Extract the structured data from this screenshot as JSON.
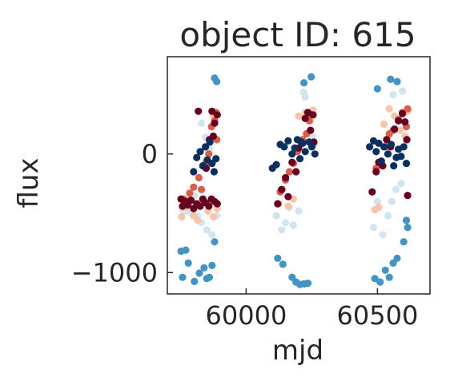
{
  "chart_data": {
    "type": "scatter",
    "title": "object ID: 615",
    "xlabel": "mjd",
    "ylabel": "flux",
    "xlim": [
      59700,
      60700
    ],
    "ylim": [
      -1180,
      820
    ],
    "xticks": [
      {
        "value": 60000,
        "label": "60000"
      },
      {
        "value": 60500,
        "label": "60500"
      }
    ],
    "yticks": [
      {
        "value": 0,
        "label": "0"
      },
      {
        "value": -1000,
        "label": "−1000"
      }
    ],
    "grid": false,
    "legend": "none",
    "band_colors": [
      "#2166ac",
      "#4393c3",
      "#d1e5f0",
      "#f7c5aa",
      "#d6604d",
      "#67001f",
      "#0b2f5e"
    ],
    "seasons": [
      {
        "x_start": 59750,
        "x_end": 59895
      },
      {
        "x_start": 60110,
        "x_end": 60260
      },
      {
        "x_start": 60470,
        "x_end": 60620
      }
    ],
    "series": [
      {
        "color": "#4393c3",
        "points": [
          [
            59752,
            -820
          ],
          [
            59758,
            -1040
          ],
          [
            59770,
            -810
          ],
          [
            59780,
            -920
          ],
          [
            59803,
            -1075
          ],
          [
            59822,
            -1005
          ],
          [
            59840,
            -960
          ],
          [
            59850,
            -1050
          ],
          [
            59860,
            -1040
          ],
          [
            59870,
            -940
          ],
          [
            59880,
            -740
          ],
          [
            59888,
            610
          ],
          [
            59880,
            640
          ],
          [
            60120,
            -880
          ],
          [
            60140,
            -930
          ],
          [
            60175,
            -1040
          ],
          [
            60190,
            -1080
          ],
          [
            60205,
            -1100
          ],
          [
            60220,
            -1095
          ],
          [
            60235,
            -1090
          ],
          [
            60220,
            600
          ],
          [
            60248,
            650
          ],
          [
            60490,
            -1050
          ],
          [
            60510,
            -1080
          ],
          [
            60530,
            -980
          ],
          [
            60545,
            -1040
          ],
          [
            60560,
            -920
          ],
          [
            60575,
            -880
          ],
          [
            60600,
            -740
          ],
          [
            60610,
            -560
          ],
          [
            60615,
            -620
          ],
          [
            60500,
            550
          ],
          [
            60550,
            630
          ],
          [
            60575,
            610
          ]
        ]
      },
      {
        "color": "#d1e5f0",
        "points": [
          [
            59758,
            -470
          ],
          [
            59770,
            -480
          ],
          [
            59790,
            -500
          ],
          [
            59805,
            -350
          ],
          [
            59815,
            -520
          ],
          [
            59830,
            -580
          ],
          [
            59850,
            -640
          ],
          [
            59870,
            -680
          ],
          [
            59888,
            -520
          ],
          [
            59830,
            260
          ],
          [
            59845,
            140
          ],
          [
            59860,
            40
          ],
          [
            60115,
            -520
          ],
          [
            60135,
            -640
          ],
          [
            60150,
            -580
          ],
          [
            60165,
            -450
          ],
          [
            60180,
            -600
          ],
          [
            60200,
            -480
          ],
          [
            60218,
            520
          ],
          [
            60225,
            480
          ],
          [
            60240,
            300
          ],
          [
            60250,
            150
          ],
          [
            60260,
            80
          ],
          [
            60485,
            -620
          ],
          [
            60500,
            -400
          ],
          [
            60520,
            -680
          ],
          [
            60540,
            -520
          ],
          [
            60555,
            -400
          ],
          [
            60570,
            -300
          ],
          [
            60590,
            -250
          ],
          [
            60560,
            500
          ],
          [
            60595,
            530
          ],
          [
            60610,
            100
          ]
        ]
      },
      {
        "color": "#f7c5aa",
        "points": [
          [
            59755,
            -530
          ],
          [
            59770,
            -450
          ],
          [
            59785,
            -380
          ],
          [
            59800,
            -520
          ],
          [
            59815,
            -560
          ],
          [
            59835,
            -400
          ],
          [
            59855,
            -480
          ],
          [
            59875,
            -530
          ],
          [
            59890,
            -460
          ],
          [
            59875,
            320
          ],
          [
            60125,
            -420
          ],
          [
            60140,
            -300
          ],
          [
            60160,
            -440
          ],
          [
            60180,
            -380
          ],
          [
            60200,
            320
          ],
          [
            60225,
            350
          ],
          [
            60245,
            280
          ],
          [
            60255,
            370
          ],
          [
            60490,
            -470
          ],
          [
            60505,
            -450
          ],
          [
            60525,
            250
          ],
          [
            60545,
            380
          ],
          [
            60565,
            320
          ],
          [
            60585,
            200
          ],
          [
            60605,
            150
          ],
          [
            60615,
            360
          ]
        ]
      },
      {
        "color": "#d6604d",
        "points": [
          [
            59762,
            -380
          ],
          [
            59785,
            -330
          ],
          [
            59800,
            -280
          ],
          [
            59820,
            -200
          ],
          [
            59830,
            -300
          ],
          [
            59845,
            -80
          ],
          [
            59858,
            0
          ],
          [
            59868,
            230
          ],
          [
            59880,
            280
          ],
          [
            59888,
            120
          ],
          [
            59885,
            350
          ],
          [
            60130,
            -320
          ],
          [
            60150,
            -220
          ],
          [
            60165,
            -150
          ],
          [
            60180,
            -80
          ],
          [
            60195,
            20
          ],
          [
            60215,
            120
          ],
          [
            60230,
            170
          ],
          [
            60240,
            280
          ],
          [
            60250,
            330
          ],
          [
            60495,
            -120
          ],
          [
            60515,
            -60
          ],
          [
            60530,
            60
          ],
          [
            60545,
            170
          ],
          [
            60560,
            200
          ],
          [
            60580,
            290
          ],
          [
            60595,
            350
          ],
          [
            60610,
            230
          ],
          [
            60615,
            380
          ]
        ]
      },
      {
        "color": "#67001f",
        "points": [
          [
            59752,
            -380
          ],
          [
            59758,
            -440
          ],
          [
            59768,
            -400
          ],
          [
            59778,
            -430
          ],
          [
            59790,
            -390
          ],
          [
            59800,
            -460
          ],
          [
            59812,
            -420
          ],
          [
            59825,
            -440
          ],
          [
            59835,
            -380
          ],
          [
            59845,
            -410
          ],
          [
            59858,
            -440
          ],
          [
            59868,
            -380
          ],
          [
            59880,
            -400
          ],
          [
            59890,
            -420
          ],
          [
            59818,
            360
          ],
          [
            59848,
            -120
          ],
          [
            59860,
            120
          ],
          [
            59870,
            360
          ],
          [
            59880,
            260
          ],
          [
            59890,
            330
          ],
          [
            59875,
            150
          ],
          [
            60120,
            -420
          ],
          [
            60135,
            -300
          ],
          [
            60150,
            -200
          ],
          [
            60160,
            -360
          ],
          [
            60175,
            -70
          ],
          [
            60190,
            -150
          ],
          [
            60200,
            50
          ],
          [
            60210,
            100
          ],
          [
            60225,
            300
          ],
          [
            60235,
            350
          ],
          [
            60245,
            200
          ],
          [
            60255,
            330
          ],
          [
            60258,
            100
          ],
          [
            60480,
            -320
          ],
          [
            60495,
            -150
          ],
          [
            60505,
            -70
          ],
          [
            60520,
            -100
          ],
          [
            60535,
            120
          ],
          [
            60550,
            60
          ],
          [
            60565,
            210
          ],
          [
            60580,
            280
          ],
          [
            60595,
            340
          ],
          [
            60605,
            270
          ],
          [
            60615,
            -350
          ],
          [
            60612,
            120
          ]
        ]
      },
      {
        "color": "#0b2f5e",
        "points": [
          [
            59800,
            -150
          ],
          [
            59812,
            -30
          ],
          [
            59825,
            20
          ],
          [
            59835,
            -100
          ],
          [
            59845,
            60
          ],
          [
            59852,
            -50
          ],
          [
            59862,
            100
          ],
          [
            59870,
            -80
          ],
          [
            59878,
            -150
          ],
          [
            59885,
            -40
          ],
          [
            60100,
            -120
          ],
          [
            60115,
            -90
          ],
          [
            60130,
            80
          ],
          [
            60145,
            60
          ],
          [
            60160,
            110
          ],
          [
            60175,
            0
          ],
          [
            60185,
            50
          ],
          [
            60195,
            120
          ],
          [
            60205,
            -40
          ],
          [
            60215,
            90
          ],
          [
            60225,
            20
          ],
          [
            60240,
            100
          ],
          [
            60250,
            60
          ],
          [
            60262,
            0
          ],
          [
            60470,
            60
          ],
          [
            60485,
            110
          ],
          [
            60495,
            20
          ],
          [
            60505,
            90
          ],
          [
            60515,
            -60
          ],
          [
            60525,
            60
          ],
          [
            60540,
            0
          ],
          [
            60552,
            80
          ],
          [
            60562,
            -100
          ],
          [
            60572,
            -30
          ],
          [
            60580,
            40
          ],
          [
            60590,
            -20
          ],
          [
            60600,
            60
          ],
          [
            60610,
            -80
          ]
        ]
      }
    ]
  }
}
